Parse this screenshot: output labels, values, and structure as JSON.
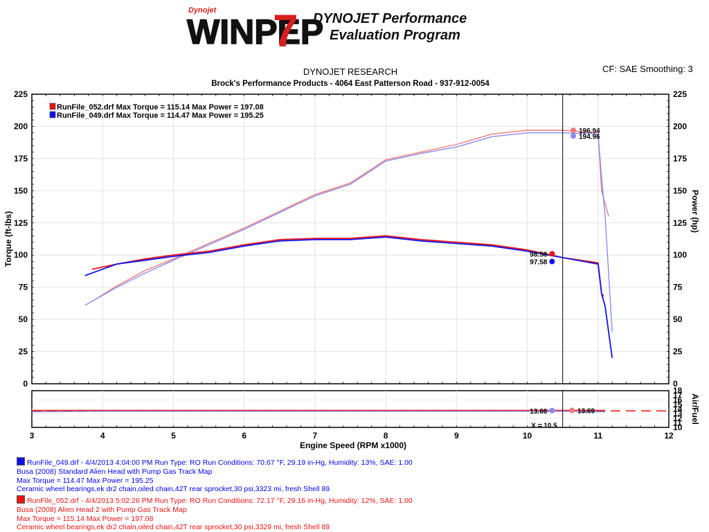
{
  "logo": {
    "brand_small": "Dynojet",
    "product": "WINPEP",
    "version": "7",
    "tagline_line1": "DYNOJET Performance",
    "tagline_line2": "Evaluation Program"
  },
  "header": {
    "research": "DYNOJET RESEARCH",
    "shop": "Brock's Performance Products - 4064 East Patterson Road - 937-912-0054",
    "correction": "CF: SAE  Smoothing: 3"
  },
  "chart_data": {
    "type": "line",
    "colors": {
      "run_052": "#ee1111",
      "run_049": "#1111ee",
      "run_052_light": "#f07a7a",
      "run_049_light": "#8a8af2",
      "cursor": "#000000"
    },
    "xlabel": "Engine Speed (RPM x1000)",
    "ylabel_left": "Torque (ft-lbs)",
    "ylabel_right": "Power (hp)",
    "ylabel_right_lower": "Air/Fuel",
    "xlim": [
      3,
      12
    ],
    "ylim": [
      0,
      225
    ],
    "afr_lim": [
      10,
      18
    ],
    "x_ticks": [
      "3",
      "4",
      "5",
      "6",
      "7",
      "8",
      "9",
      "10",
      "11",
      "12"
    ],
    "y_ticks": [
      "0",
      "25",
      "50",
      "75",
      "100",
      "125",
      "150",
      "175",
      "200",
      "225"
    ],
    "afr_ticks": [
      "10",
      "12",
      "14",
      "16",
      "18"
    ],
    "legend": [
      {
        "swatch": "#ee1111",
        "text": "RunFile_052.drf Max Torque = 115.14     Max Power = 197.08"
      },
      {
        "swatch": "#1111ee",
        "text": "RunFile_049.drf Max Torque = 114.47     Max Power = 195.25"
      }
    ],
    "cursor_x": 10.5,
    "cursor_label": "X = 10.5",
    "readouts": [
      {
        "series": "run_052_power",
        "x": 10.65,
        "value": 196.94,
        "label": "196.94"
      },
      {
        "series": "run_049_power",
        "x": 10.65,
        "value": 192.5,
        "label": "194.96"
      },
      {
        "series": "run_052_torque",
        "x": 10.35,
        "value": 101.0,
        "label": "98.58"
      },
      {
        "series": "run_049_torque",
        "x": 10.35,
        "value": 95.0,
        "label": "97.58"
      },
      {
        "series": "run_049_afr",
        "x": 10.35,
        "value": 13.66,
        "label": "13.66"
      },
      {
        "series": "run_052_afr",
        "x": 10.63,
        "value": 13.69,
        "label": "13.69"
      }
    ],
    "series": [
      {
        "name": "RunFile_052.drf",
        "kind": "power",
        "color": "#f07a7a",
        "x": [
          3.85,
          4.2,
          4.6,
          5.0,
          5.5,
          6.0,
          6.5,
          7.0,
          7.5,
          8.0,
          8.5,
          9.0,
          9.5,
          10.0,
          10.5,
          11.0,
          11.05,
          11.1,
          11.15
        ],
        "y": [
          64,
          76,
          88,
          97,
          109,
          121,
          134,
          147,
          156,
          174,
          180,
          186,
          194,
          197,
          197,
          195,
          150,
          140,
          130
        ]
      },
      {
        "name": "RunFile_049.drf",
        "kind": "power",
        "color": "#8a8af2",
        "x": [
          3.75,
          4.2,
          4.6,
          5.0,
          5.5,
          6.0,
          6.5,
          7.0,
          7.5,
          8.0,
          8.5,
          9.0,
          9.5,
          10.0,
          10.5,
          11.0,
          11.05,
          11.1,
          11.2
        ],
        "y": [
          61,
          75,
          86,
          96,
          108,
          120,
          133,
          146,
          155,
          173,
          179,
          184,
          192,
          195,
          195,
          194,
          160,
          130,
          40
        ]
      },
      {
        "name": "RunFile_052.drf",
        "kind": "torque",
        "color": "#ee1111",
        "x": [
          3.85,
          4.2,
          4.6,
          5.0,
          5.5,
          6.0,
          6.5,
          7.0,
          7.5,
          8.0,
          8.5,
          9.0,
          9.5,
          10.0,
          10.5,
          11.0,
          11.05,
          11.08
        ],
        "y": [
          89,
          93,
          97,
          100,
          103,
          108,
          112,
          113,
          113,
          115,
          112,
          110,
          108,
          104,
          98,
          94,
          70,
          68
        ]
      },
      {
        "name": "RunFile_049.drf",
        "kind": "torque",
        "color": "#1111ee",
        "x": [
          3.75,
          4.2,
          4.6,
          5.0,
          5.5,
          6.0,
          6.5,
          7.0,
          7.5,
          8.0,
          8.5,
          9.0,
          9.5,
          10.0,
          10.5,
          11.0,
          11.05,
          11.1,
          11.2
        ],
        "y": [
          84,
          93,
          96,
          99,
          102,
          107,
          111,
          112,
          112,
          114,
          111,
          109,
          107,
          103,
          98,
          93,
          70,
          60,
          20
        ]
      },
      {
        "name": "RunFile_052.drf",
        "kind": "afr",
        "color": "#ee1111",
        "x": [
          3,
          4,
          5,
          6,
          7,
          8,
          9,
          10,
          10.5,
          11,
          11.1
        ],
        "y": [
          13.7,
          13.7,
          13.7,
          13.7,
          13.7,
          13.7,
          13.7,
          13.7,
          13.7,
          13.7,
          13.7
        ]
      },
      {
        "name": "RunFile_049.drf",
        "kind": "afr",
        "color": "#8a8af2",
        "x": [
          3,
          4,
          5,
          6,
          7,
          8,
          9,
          10,
          10.5,
          11,
          11.1
        ],
        "y": [
          13.4,
          13.5,
          13.5,
          13.5,
          13.5,
          13.5,
          13.5,
          13.5,
          13.5,
          13.4,
          13.4
        ]
      }
    ]
  },
  "runs": [
    {
      "swatch": "#1111ee",
      "line1": "RunFile_049.drf - 4/4/2013 4:04:00 PM  Run Type: RO  Run Conditions: 70.67 °F, 29.19 in-Hg,  Humidity:  13%, SAE: 1.00",
      "line2": "Busa (2008) Standard Alien Head with Pump Gas Track Map",
      "line3": "Max Torque = 114.47  Max Power = 195.25",
      "line4": "Ceramic wheel bearings,ek dr2 chain,oiled chain,42T rear sprocket,30 psi,3323 mi, fresh Shell 89"
    },
    {
      "swatch": "#ee1111",
      "line1": "RunFile_052.drf - 4/4/2013 5:02:26 PM  Run Type: RO  Run Conditions: 72.17 °F, 29.16 in-Hg,  Humidity:  12%, SAE: 1.00",
      "line2": "Busa (2008) Alien Head 2 with Pump Gas Track Map",
      "line3": "Max Torque = 115.14  Max Power = 197.08",
      "line4": "Ceramic wheel bearings,ek dr2 chain,oiled chain,42T rear sprocket,30 psi,3329 mi, fresh Shell 89"
    }
  ]
}
